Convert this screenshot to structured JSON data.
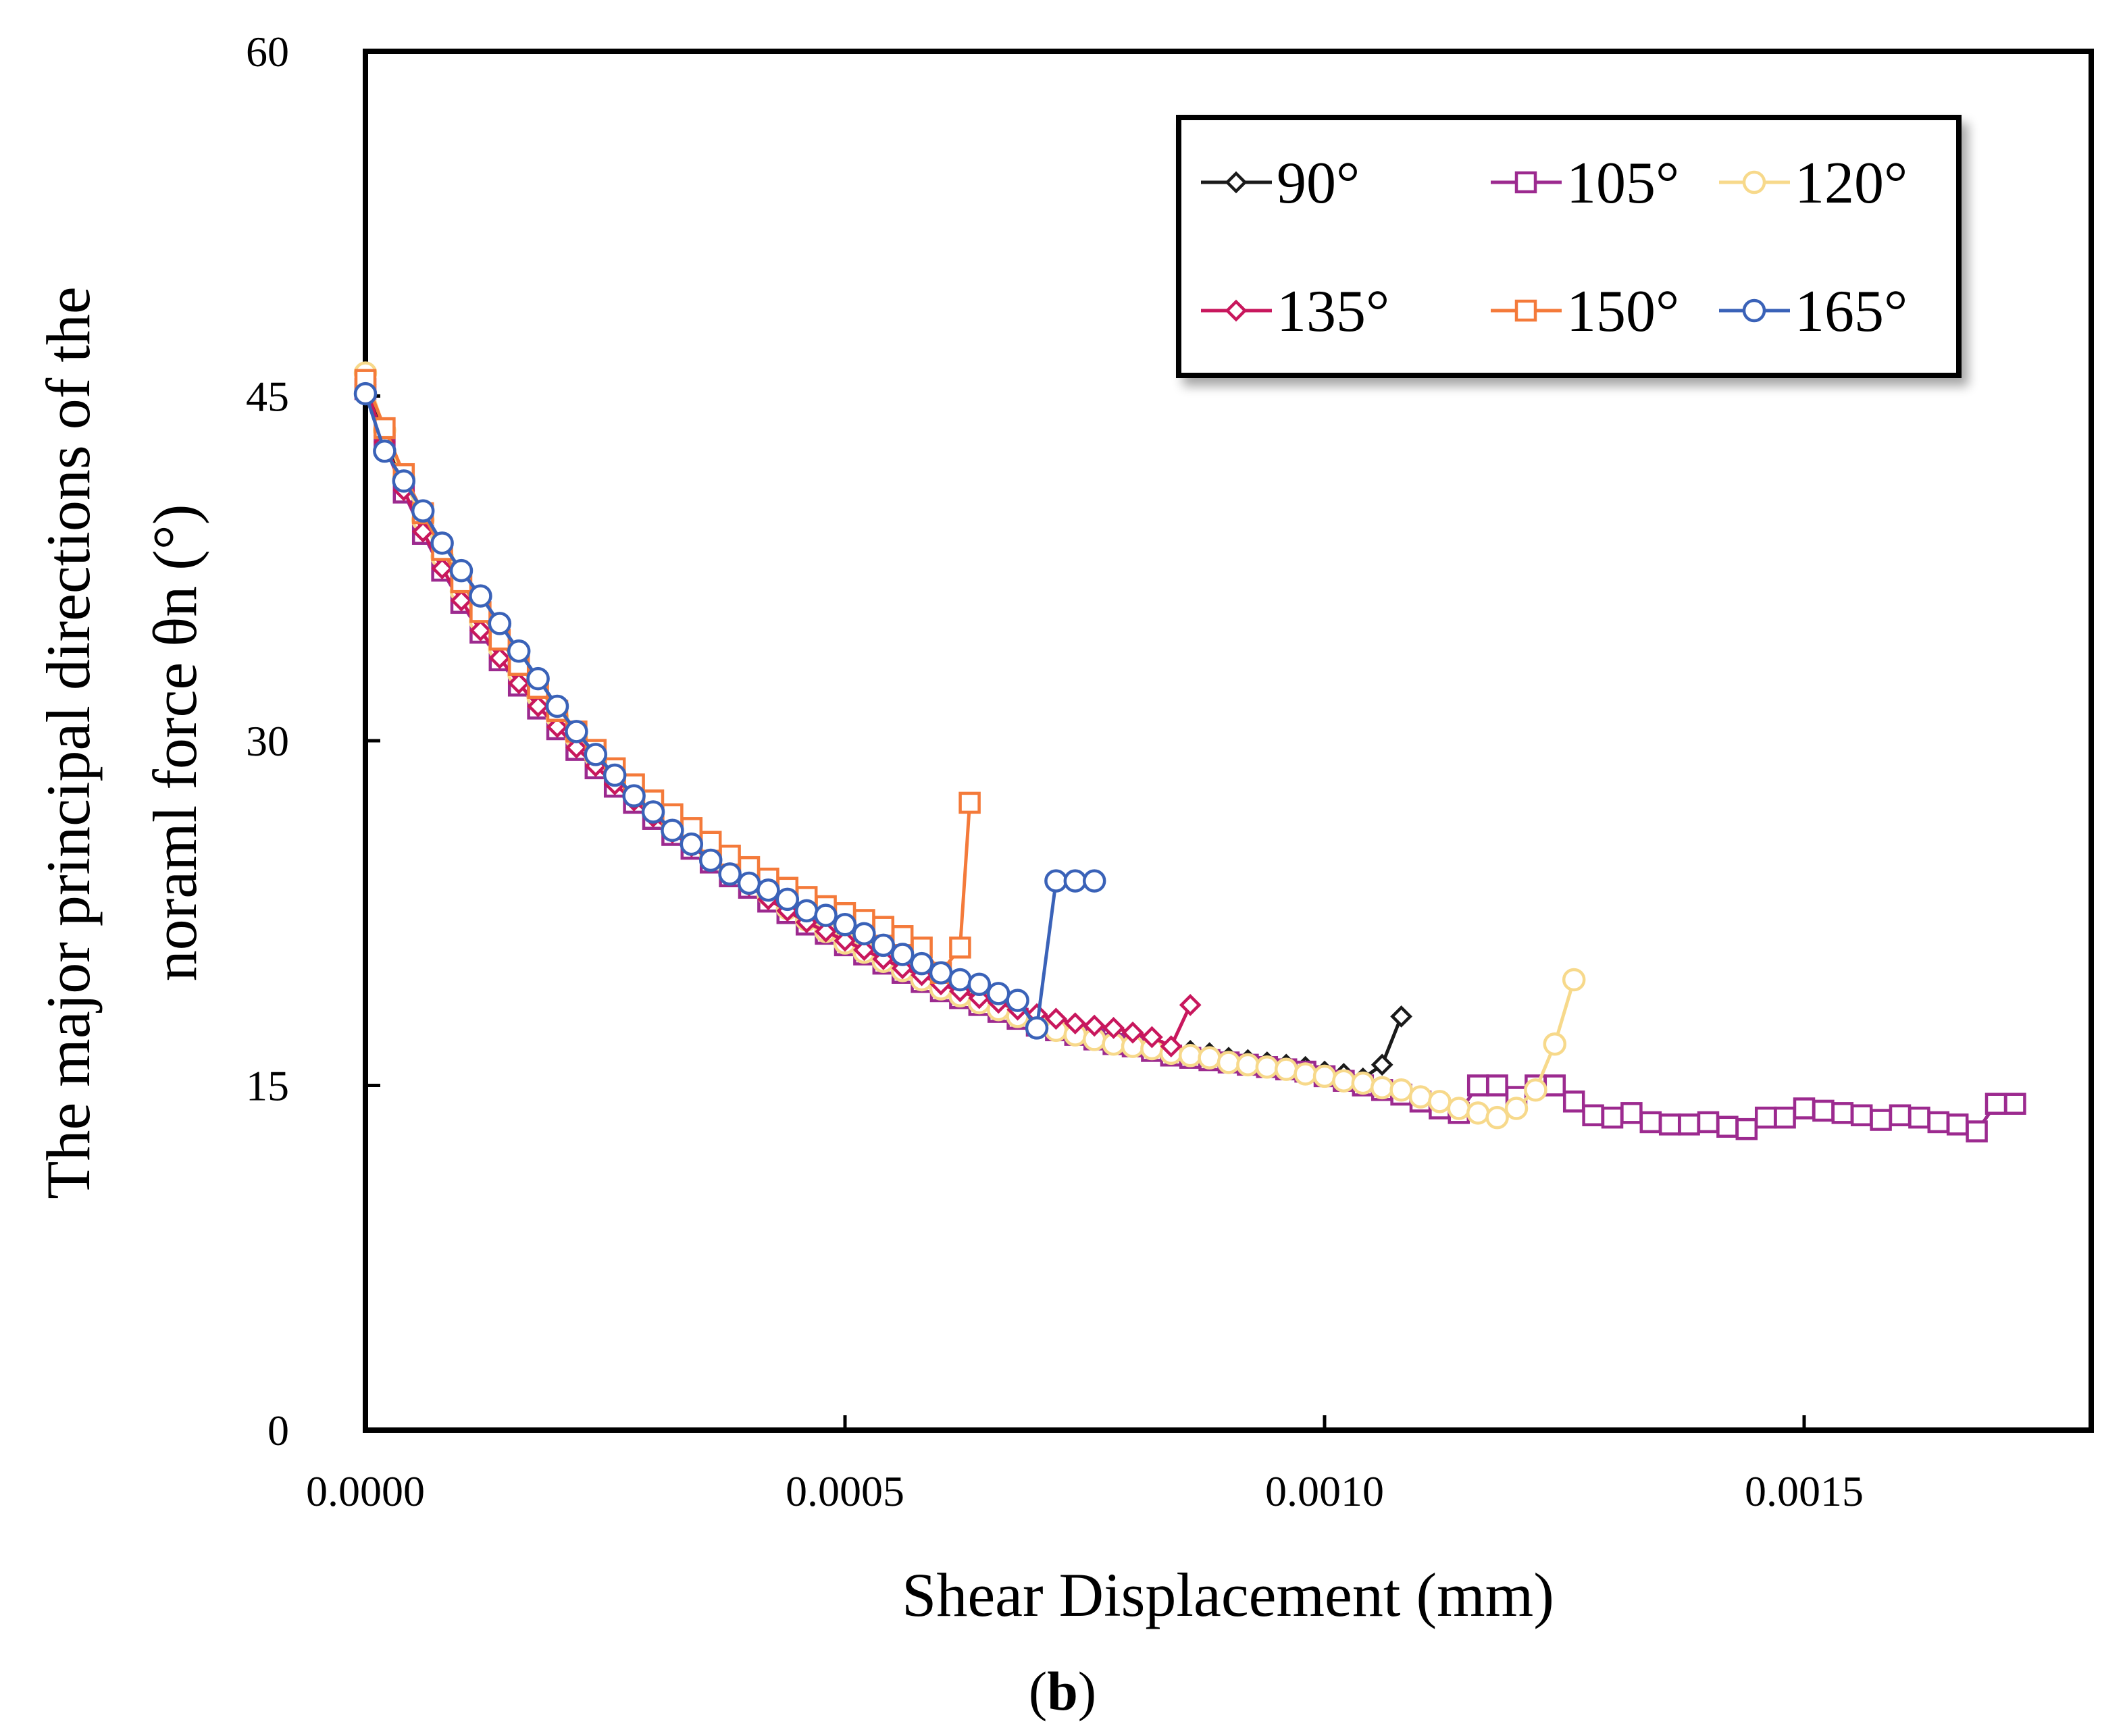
{
  "caption": {
    "open": "(",
    "letter": "b",
    "close": ")"
  },
  "chart_data": {
    "type": "line",
    "xlabel": "Shear Displacement (mm)",
    "ylabel_line1": "The major principal directions of the",
    "ylabel_line2": "noraml force θn (°)",
    "xlim": [
      0,
      0.0018
    ],
    "ylim": [
      0,
      60
    ],
    "xticks": [
      0.0,
      0.0005,
      0.001,
      0.0015
    ],
    "xtick_labels": [
      "0.0000",
      "0.0005",
      "0.0010",
      "0.0015"
    ],
    "yticks": [
      0,
      15,
      30,
      45,
      60
    ],
    "ytick_labels": [
      "0",
      "15",
      "30",
      "45",
      "60"
    ],
    "grid": false,
    "legend_position": "top-right",
    "series": [
      {
        "name": "90°",
        "color": "#1a1a1a",
        "marker": "diamond",
        "x": [
          0.0,
          2e-05,
          4e-05,
          6e-05,
          8e-05,
          0.0001,
          0.00012,
          0.00014,
          0.00016,
          0.00018,
          0.0002,
          0.00022,
          0.00024,
          0.00026,
          0.00028,
          0.0003,
          0.00032,
          0.00034,
          0.00036,
          0.00038,
          0.0004,
          0.00042,
          0.00044,
          0.00046,
          0.00048,
          0.0005,
          0.00052,
          0.00054,
          0.00056,
          0.00058,
          0.0006,
          0.00062,
          0.00064,
          0.00066,
          0.00068,
          0.0007,
          0.00072,
          0.00074,
          0.00076,
          0.00078,
          0.0008,
          0.00082,
          0.00084,
          0.00086,
          0.00088,
          0.0009,
          0.00092,
          0.00094,
          0.00096,
          0.00098,
          0.001,
          0.00102,
          0.00104,
          0.00106,
          0.00108
        ],
        "y": [
          45.5,
          43.3,
          41.3,
          39.6,
          38.0,
          36.6,
          35.3,
          34.1,
          33.0,
          32.0,
          31.1,
          30.2,
          29.4,
          28.6,
          27.9,
          27.2,
          26.5,
          25.9,
          25.3,
          24.7,
          24.2,
          23.6,
          23.1,
          22.6,
          22.1,
          21.7,
          21.2,
          20.8,
          20.4,
          20.0,
          19.6,
          19.2,
          18.9,
          18.6,
          18.3,
          18.0,
          17.7,
          17.5,
          17.3,
          17.1,
          17.0,
          16.8,
          16.6,
          16.5,
          16.4,
          16.2,
          16.1,
          16.0,
          15.9,
          15.8,
          15.6,
          15.5,
          15.3,
          15.9,
          18.0
        ]
      },
      {
        "name": "105°",
        "color": "#9c2a8f",
        "marker": "square",
        "x": [
          0.0,
          2e-05,
          4e-05,
          6e-05,
          8e-05,
          0.0001,
          0.00012,
          0.00014,
          0.00016,
          0.00018,
          0.0002,
          0.00022,
          0.00024,
          0.00026,
          0.00028,
          0.0003,
          0.00032,
          0.00034,
          0.00036,
          0.00038,
          0.0004,
          0.00042,
          0.00044,
          0.00046,
          0.00048,
          0.0005,
          0.00052,
          0.00054,
          0.00056,
          0.00058,
          0.0006,
          0.00062,
          0.00064,
          0.00066,
          0.00068,
          0.0007,
          0.00072,
          0.00074,
          0.00076,
          0.00078,
          0.0008,
          0.00082,
          0.00084,
          0.00086,
          0.00088,
          0.0009,
          0.00092,
          0.00094,
          0.00096,
          0.00098,
          0.001,
          0.00102,
          0.00104,
          0.00106,
          0.00108,
          0.0011,
          0.00112,
          0.00114,
          0.00116,
          0.00118,
          0.0012,
          0.00122,
          0.00124,
          0.00126,
          0.00128,
          0.0013,
          0.00132,
          0.00134,
          0.00136,
          0.00138,
          0.0014,
          0.00142,
          0.00144,
          0.00146,
          0.00148,
          0.0015,
          0.00152,
          0.00154,
          0.00156,
          0.00158,
          0.0016,
          0.00162,
          0.00164,
          0.00166,
          0.00168,
          0.0017,
          0.00172
        ],
        "y": [
          45.3,
          42.9,
          40.8,
          39.0,
          37.4,
          36.0,
          34.7,
          33.5,
          32.4,
          31.4,
          30.5,
          29.6,
          28.8,
          28.0,
          27.3,
          26.6,
          25.9,
          25.3,
          24.7,
          24.1,
          23.6,
          23.0,
          22.5,
          22.0,
          21.6,
          21.1,
          20.7,
          20.3,
          19.9,
          19.5,
          19.1,
          18.8,
          18.5,
          18.2,
          17.9,
          17.6,
          17.4,
          17.2,
          17.0,
          16.8,
          16.7,
          16.5,
          16.3,
          16.2,
          16.1,
          16.0,
          15.9,
          15.8,
          15.7,
          15.6,
          15.4,
          15.2,
          15.0,
          14.8,
          14.6,
          14.3,
          14.0,
          13.8,
          15.0,
          15.0,
          14.5,
          15.0,
          15.0,
          14.3,
          13.7,
          13.6,
          13.8,
          13.4,
          13.3,
          13.3,
          13.4,
          13.2,
          13.1,
          13.6,
          13.6,
          14.0,
          13.9,
          13.8,
          13.7,
          13.5,
          13.7,
          13.6,
          13.4,
          13.3,
          13.0,
          14.2,
          14.2
        ]
      },
      {
        "name": "120°",
        "color": "#f7d98b",
        "marker": "circle",
        "x": [
          0.0,
          2e-05,
          4e-05,
          6e-05,
          8e-05,
          0.0001,
          0.00012,
          0.00014,
          0.00016,
          0.00018,
          0.0002,
          0.00022,
          0.00024,
          0.00026,
          0.00028,
          0.0003,
          0.00032,
          0.00034,
          0.00036,
          0.00038,
          0.0004,
          0.00042,
          0.00044,
          0.00046,
          0.00048,
          0.0005,
          0.00052,
          0.00054,
          0.00056,
          0.00058,
          0.0006,
          0.00062,
          0.00064,
          0.00066,
          0.00068,
          0.0007,
          0.00072,
          0.00074,
          0.00076,
          0.00078,
          0.0008,
          0.00082,
          0.00084,
          0.00086,
          0.00088,
          0.0009,
          0.00092,
          0.00094,
          0.00096,
          0.00098,
          0.001,
          0.00102,
          0.00104,
          0.00106,
          0.00108,
          0.0011,
          0.00112,
          0.00114,
          0.00116,
          0.00118,
          0.0012,
          0.00122,
          0.00124,
          0.00126
        ],
        "y": [
          46.0,
          43.5,
          41.4,
          39.6,
          38.0,
          36.5,
          35.2,
          34.0,
          32.9,
          31.9,
          31.0,
          30.1,
          29.3,
          28.5,
          27.7,
          27.0,
          26.3,
          25.7,
          25.0,
          24.4,
          23.8,
          23.3,
          22.7,
          22.2,
          21.7,
          21.2,
          20.8,
          20.4,
          20.0,
          19.6,
          19.2,
          18.9,
          18.6,
          18.3,
          18.0,
          17.7,
          17.4,
          17.2,
          17.0,
          16.8,
          16.7,
          16.6,
          16.4,
          16.3,
          16.2,
          16.0,
          15.9,
          15.8,
          15.7,
          15.5,
          15.4,
          15.2,
          15.1,
          14.9,
          14.8,
          14.5,
          14.3,
          14.0,
          13.8,
          13.6,
          14.0,
          14.8,
          16.8,
          19.6
        ]
      },
      {
        "name": "135°",
        "color": "#c8175d",
        "marker": "diamond",
        "x": [
          0.0,
          2e-05,
          4e-05,
          6e-05,
          8e-05,
          0.0001,
          0.00012,
          0.00014,
          0.00016,
          0.00018,
          0.0002,
          0.00022,
          0.00024,
          0.00026,
          0.00028,
          0.0003,
          0.00032,
          0.00034,
          0.00036,
          0.00038,
          0.0004,
          0.00042,
          0.00044,
          0.00046,
          0.00048,
          0.0005,
          0.00052,
          0.00054,
          0.00056,
          0.00058,
          0.0006,
          0.00062,
          0.00064,
          0.00066,
          0.00068,
          0.0007,
          0.00072,
          0.00074,
          0.00076,
          0.00078,
          0.0008,
          0.00082,
          0.00084,
          0.00086
        ],
        "y": [
          45.4,
          43.0,
          40.9,
          39.1,
          37.5,
          36.1,
          34.8,
          33.6,
          32.5,
          31.5,
          30.6,
          29.7,
          28.9,
          28.1,
          27.4,
          26.7,
          26.0,
          25.4,
          24.8,
          24.2,
          23.7,
          23.1,
          22.6,
          22.1,
          21.7,
          21.3,
          20.9,
          20.5,
          20.1,
          19.8,
          19.4,
          19.1,
          18.8,
          18.6,
          18.3,
          18.1,
          17.9,
          17.7,
          17.6,
          17.5,
          17.3,
          17.1,
          16.7,
          18.5
        ]
      },
      {
        "name": "150°",
        "color": "#f47a3a",
        "marker": "square",
        "x": [
          0.0,
          2e-05,
          4e-05,
          6e-05,
          8e-05,
          0.0001,
          0.00012,
          0.00014,
          0.00016,
          0.00018,
          0.0002,
          0.00022,
          0.00024,
          0.00026,
          0.00028,
          0.0003,
          0.00032,
          0.00034,
          0.00036,
          0.00038,
          0.0004,
          0.00042,
          0.00044,
          0.00046,
          0.00048,
          0.0005,
          0.00052,
          0.00054,
          0.00056,
          0.00058,
          0.0006,
          0.00062,
          0.00063
        ],
        "y": [
          45.7,
          43.6,
          41.6,
          39.9,
          38.3,
          36.9,
          35.6,
          34.4,
          33.3,
          32.3,
          31.3,
          30.4,
          29.6,
          28.8,
          28.1,
          27.4,
          26.8,
          26.2,
          25.6,
          25.0,
          24.5,
          24.0,
          23.6,
          23.2,
          22.8,
          22.5,
          22.2,
          21.9,
          21.5,
          21.0,
          19.9,
          21.0,
          27.3
        ]
      },
      {
        "name": "165°",
        "color": "#3a62b8",
        "marker": "circle",
        "x": [
          0.0,
          2e-05,
          4e-05,
          6e-05,
          8e-05,
          0.0001,
          0.00012,
          0.00014,
          0.00016,
          0.00018,
          0.0002,
          0.00022,
          0.00024,
          0.00026,
          0.00028,
          0.0003,
          0.00032,
          0.00034,
          0.00036,
          0.00038,
          0.0004,
          0.00042,
          0.00044,
          0.00046,
          0.00048,
          0.0005,
          0.00052,
          0.00054,
          0.00056,
          0.00058,
          0.0006,
          0.00062,
          0.00064,
          0.00066,
          0.00068,
          0.0007,
          0.00072,
          0.00074,
          0.00076
        ],
        "y": [
          45.1,
          42.6,
          41.3,
          40.0,
          38.6,
          37.4,
          36.3,
          35.1,
          33.9,
          32.7,
          31.5,
          30.4,
          29.4,
          28.5,
          27.6,
          26.9,
          26.1,
          25.5,
          24.8,
          24.2,
          23.8,
          23.5,
          23.1,
          22.6,
          22.4,
          22.0,
          21.6,
          21.1,
          20.7,
          20.3,
          19.9,
          19.6,
          19.4,
          19.0,
          18.7,
          17.5,
          23.9,
          23.9,
          23.9
        ]
      }
    ]
  }
}
